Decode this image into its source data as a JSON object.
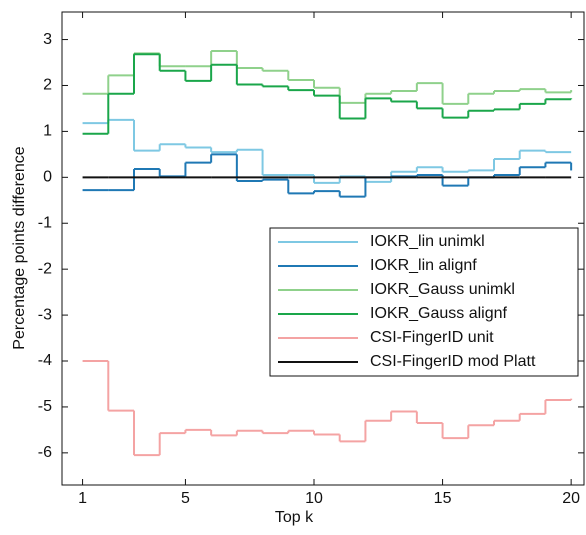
{
  "chart_data": {
    "type": "stairs",
    "xlabel": "Top k",
    "ylabel": "Percentage points difference",
    "x": [
      1,
      2,
      3,
      4,
      5,
      6,
      7,
      8,
      9,
      10,
      11,
      12,
      13,
      14,
      15,
      16,
      17,
      18,
      19,
      20
    ],
    "xlim": [
      0.2,
      20.5
    ],
    "xticks": [
      1,
      5,
      10,
      15,
      20
    ],
    "ylim": [
      -6.7,
      3.6
    ],
    "yticks": [
      -6,
      -5,
      -4,
      -3,
      -2,
      -1,
      0,
      1,
      2,
      3
    ],
    "legend": "right",
    "series": [
      {
        "name": "IOKR_lin unimkl",
        "color": "#7ec8e3",
        "values": [
          1.18,
          1.25,
          0.58,
          0.72,
          0.65,
          0.55,
          0.6,
          0.05,
          0.05,
          -0.12,
          0.02,
          -0.1,
          0.12,
          0.22,
          0.12,
          0.15,
          0.4,
          0.58,
          0.55,
          0.55
        ]
      },
      {
        "name": "IOKR_lin alignf",
        "color": "#1f78b4",
        "values": [
          -0.28,
          -0.28,
          0.18,
          0.02,
          0.32,
          0.5,
          -0.08,
          -0.05,
          -0.35,
          -0.3,
          -0.42,
          0.0,
          0.02,
          0.05,
          -0.18,
          0.0,
          0.05,
          0.22,
          0.32,
          0.15
        ]
      },
      {
        "name": "IOKR_Gauss unimkl",
        "color": "#8fd18b",
        "values": [
          1.82,
          2.22,
          2.7,
          2.42,
          2.42,
          2.75,
          2.38,
          2.32,
          2.12,
          1.95,
          1.62,
          1.82,
          1.88,
          2.05,
          1.6,
          1.82,
          1.88,
          1.92,
          1.85,
          1.9
        ]
      },
      {
        "name": "IOKR_Gauss alignf",
        "color": "#1aa64a",
        "values": [
          0.95,
          1.82,
          2.68,
          2.32,
          2.1,
          2.45,
          2.02,
          1.98,
          1.9,
          1.78,
          1.28,
          1.72,
          1.65,
          1.5,
          1.3,
          1.45,
          1.48,
          1.6,
          1.7,
          1.72
        ]
      },
      {
        "name": "CSI-FingerID unit",
        "color": "#f4a3a3",
        "values": [
          -4.0,
          -5.08,
          -6.05,
          -5.57,
          -5.5,
          -5.62,
          -5.52,
          -5.57,
          -5.52,
          -5.6,
          -5.75,
          -5.3,
          -5.1,
          -5.35,
          -5.68,
          -5.4,
          -5.3,
          -5.15,
          -4.85,
          -4.82
        ]
      },
      {
        "name": "CSI-FingerID mod Platt",
        "color": "#111111",
        "values": [
          0,
          0,
          0,
          0,
          0,
          0,
          0,
          0,
          0,
          0,
          0,
          0,
          0,
          0,
          0,
          0,
          0,
          0,
          0,
          0
        ]
      }
    ]
  }
}
